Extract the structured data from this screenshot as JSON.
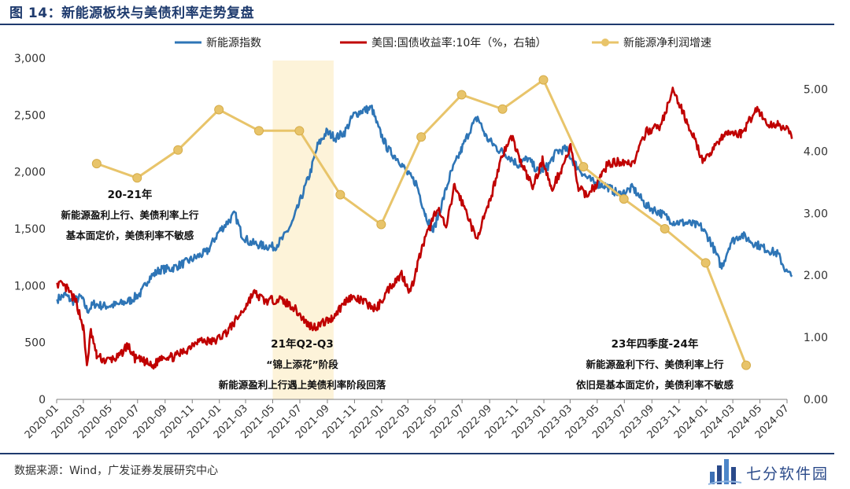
{
  "figure": {
    "title": "图 14：新能源板块与美债利率走势复盘",
    "source": "数据来源：Wind，广发证券发展研究中心",
    "watermark": "七分软件园"
  },
  "chart_data": {
    "type": "line",
    "legend": [
      {
        "name": "新能源指数",
        "color": "#2e75b6",
        "marker": "line"
      },
      {
        "name": "美国:国债收益率:10年（%，右轴）",
        "color": "#c00000",
        "marker": "line"
      },
      {
        "name": "新能源净利润增速",
        "color": "#e8c46a",
        "marker": "line-dot"
      }
    ],
    "legend_placement": "top",
    "grid": false,
    "x_ticks": [
      "2020-01",
      "2020-03",
      "2020-05",
      "2020-07",
      "2020-09",
      "2020-11",
      "2021-01",
      "2021-03",
      "2021-05",
      "2021-07",
      "2021-09",
      "2021-11",
      "2022-01",
      "2022-03",
      "2022-05",
      "2022-07",
      "2022-09",
      "2022-11",
      "2023-01",
      "2023-03",
      "2023-05",
      "2023-07",
      "2023-09",
      "2023-11",
      "2024-01",
      "2024-03",
      "2024-05",
      "2024-07"
    ],
    "y_left": {
      "ticks": [
        "0",
        "500",
        "1,000",
        "1,500",
        "2,000",
        "2,500",
        "3,000"
      ],
      "range": [
        0,
        3000
      ]
    },
    "y_right": {
      "ticks": [
        "0.00",
        "1.00",
        "2.00",
        "3.00",
        "4.00",
        "5.00"
      ],
      "range": [
        0,
        5.5
      ]
    },
    "series": [
      {
        "name": "新能源指数",
        "axis": "left",
        "color": "#2e75b6",
        "noise": 38,
        "seed": 7,
        "points": [
          [
            "2020-01-02",
            880
          ],
          [
            "2020-01-20",
            920
          ],
          [
            "2020-02-05",
            860
          ],
          [
            "2020-02-25",
            900
          ],
          [
            "2020-03-10",
            780
          ],
          [
            "2020-03-25",
            840
          ],
          [
            "2020-04-15",
            820
          ],
          [
            "2020-05-15",
            830
          ],
          [
            "2020-06-15",
            870
          ],
          [
            "2020-07-10",
            940
          ],
          [
            "2020-07-25",
            1060
          ],
          [
            "2020-08-20",
            1140
          ],
          [
            "2020-09-15",
            1150
          ],
          [
            "2020-10-15",
            1200
          ],
          [
            "2020-11-10",
            1250
          ],
          [
            "2020-12-05",
            1300
          ],
          [
            "2020-12-30",
            1470
          ],
          [
            "2021-01-20",
            1560
          ],
          [
            "2021-02-05",
            1630
          ],
          [
            "2021-02-20",
            1450
          ],
          [
            "2021-03-10",
            1380
          ],
          [
            "2021-04-10",
            1350
          ],
          [
            "2021-05-05",
            1340
          ],
          [
            "2021-05-25",
            1420
          ],
          [
            "2021-06-15",
            1560
          ],
          [
            "2021-07-05",
            1780
          ],
          [
            "2021-07-25",
            2000
          ],
          [
            "2021-08-10",
            2230
          ],
          [
            "2021-08-30",
            2350
          ],
          [
            "2021-09-20",
            2300
          ],
          [
            "2021-10-10",
            2350
          ],
          [
            "2021-10-30",
            2500
          ],
          [
            "2021-11-20",
            2540
          ],
          [
            "2021-12-10",
            2560
          ],
          [
            "2021-12-25",
            2380
          ],
          [
            "2022-01-15",
            2200
          ],
          [
            "2022-02-10",
            2100
          ],
          [
            "2022-03-01",
            1980
          ],
          [
            "2022-03-20",
            1900
          ],
          [
            "2022-04-10",
            1620
          ],
          [
            "2022-04-27",
            1480
          ],
          [
            "2022-05-15",
            1700
          ],
          [
            "2022-06-05",
            1980
          ],
          [
            "2022-06-30",
            2200
          ],
          [
            "2022-07-20",
            2380
          ],
          [
            "2022-08-05",
            2480
          ],
          [
            "2022-08-25",
            2300
          ],
          [
            "2022-09-20",
            2200
          ],
          [
            "2022-10-10",
            2150
          ],
          [
            "2022-11-05",
            2060
          ],
          [
            "2022-11-25",
            2120
          ],
          [
            "2022-12-20",
            2000
          ],
          [
            "2023-01-10",
            2050
          ],
          [
            "2023-01-30",
            2180
          ],
          [
            "2023-02-20",
            2200
          ],
          [
            "2023-03-10",
            2080
          ],
          [
            "2023-04-05",
            1960
          ],
          [
            "2023-04-25",
            1900
          ],
          [
            "2023-05-20",
            1880
          ],
          [
            "2023-06-20",
            1800
          ],
          [
            "2023-07-20",
            1860
          ],
          [
            "2023-08-20",
            1700
          ],
          [
            "2023-09-20",
            1640
          ],
          [
            "2023-10-20",
            1560
          ],
          [
            "2023-11-20",
            1550
          ],
          [
            "2023-12-20",
            1520
          ],
          [
            "2024-01-10",
            1400
          ],
          [
            "2024-02-05",
            1160
          ],
          [
            "2024-02-25",
            1380
          ],
          [
            "2024-03-20",
            1450
          ],
          [
            "2024-04-15",
            1380
          ],
          [
            "2024-05-10",
            1330
          ],
          [
            "2024-06-10",
            1280
          ],
          [
            "2024-06-30",
            1120
          ],
          [
            "2024-07-12",
            1080
          ]
        ]
      },
      {
        "name": "美国:国债收益率:10年（%，右轴）",
        "axis": "right",
        "color": "#c00000",
        "noise": 0.07,
        "seed": 13,
        "points": [
          [
            "2020-01-02",
            1.88
          ],
          [
            "2020-01-25",
            1.78
          ],
          [
            "2020-02-15",
            1.55
          ],
          [
            "2020-03-01",
            1.15
          ],
          [
            "2020-03-09",
            0.54
          ],
          [
            "2020-03-18",
            1.1
          ],
          [
            "2020-03-31",
            0.7
          ],
          [
            "2020-04-20",
            0.62
          ],
          [
            "2020-05-20",
            0.68
          ],
          [
            "2020-06-08",
            0.88
          ],
          [
            "2020-06-25",
            0.66
          ],
          [
            "2020-07-20",
            0.6
          ],
          [
            "2020-08-04",
            0.52
          ],
          [
            "2020-08-25",
            0.7
          ],
          [
            "2020-09-20",
            0.68
          ],
          [
            "2020-10-20",
            0.8
          ],
          [
            "2020-11-10",
            0.95
          ],
          [
            "2020-12-20",
            0.93
          ],
          [
            "2021-01-20",
            1.1
          ],
          [
            "2021-02-25",
            1.45
          ],
          [
            "2021-03-19",
            1.72
          ],
          [
            "2021-04-15",
            1.58
          ],
          [
            "2021-05-15",
            1.62
          ],
          [
            "2021-06-15",
            1.5
          ],
          [
            "2021-07-20",
            1.2
          ],
          [
            "2021-08-04",
            1.17
          ],
          [
            "2021-09-10",
            1.3
          ],
          [
            "2021-10-20",
            1.65
          ],
          [
            "2021-11-20",
            1.58
          ],
          [
            "2021-12-20",
            1.45
          ],
          [
            "2022-01-20",
            1.82
          ],
          [
            "2022-02-15",
            2.02
          ],
          [
            "2022-03-07",
            1.73
          ],
          [
            "2022-03-31",
            2.4
          ],
          [
            "2022-05-06",
            3.1
          ],
          [
            "2022-05-26",
            2.75
          ],
          [
            "2022-06-14",
            3.45
          ],
          [
            "2022-07-15",
            2.95
          ],
          [
            "2022-08-01",
            2.58
          ],
          [
            "2022-08-30",
            3.12
          ],
          [
            "2022-09-27",
            3.9
          ],
          [
            "2022-10-21",
            4.24
          ],
          [
            "2022-11-10",
            3.82
          ],
          [
            "2022-12-07",
            3.42
          ],
          [
            "2022-12-30",
            3.88
          ],
          [
            "2023-01-18",
            3.37
          ],
          [
            "2023-02-10",
            3.72
          ],
          [
            "2023-03-02",
            4.07
          ],
          [
            "2023-03-20",
            3.4
          ],
          [
            "2023-04-06",
            3.3
          ],
          [
            "2023-04-28",
            3.45
          ],
          [
            "2023-05-25",
            3.8
          ],
          [
            "2023-06-30",
            3.84
          ],
          [
            "2023-07-20",
            3.8
          ],
          [
            "2023-08-21",
            4.33
          ],
          [
            "2023-09-20",
            4.4
          ],
          [
            "2023-10-19",
            4.98
          ],
          [
            "2023-11-10",
            4.62
          ],
          [
            "2023-11-30",
            4.3
          ],
          [
            "2023-12-27",
            3.8
          ],
          [
            "2024-01-20",
            4.1
          ],
          [
            "2024-02-20",
            4.3
          ],
          [
            "2024-03-20",
            4.28
          ],
          [
            "2024-04-25",
            4.7
          ],
          [
            "2024-05-20",
            4.4
          ],
          [
            "2024-06-10",
            4.45
          ],
          [
            "2024-06-30",
            4.35
          ],
          [
            "2024-07-12",
            4.2
          ]
        ]
      },
      {
        "name": "新能源净利润增速",
        "axis": "right",
        "color": "#e8c46a",
        "markers": true,
        "points": [
          [
            "2020-03-31",
            3.8
          ],
          [
            "2020-06-30",
            3.57
          ],
          [
            "2020-09-30",
            4.02
          ],
          [
            "2020-12-31",
            4.67
          ],
          [
            "2021-03-31",
            4.33
          ],
          [
            "2021-06-30",
            4.33
          ],
          [
            "2021-09-30",
            3.3
          ],
          [
            "2021-12-31",
            2.82
          ],
          [
            "2022-03-31",
            4.23
          ],
          [
            "2022-06-30",
            4.91
          ],
          [
            "2022-09-30",
            4.68
          ],
          [
            "2022-12-31",
            5.15
          ],
          [
            "2023-03-31",
            3.75
          ],
          [
            "2023-06-30",
            3.23
          ],
          [
            "2023-09-30",
            2.75
          ],
          [
            "2023-12-31",
            2.2
          ],
          [
            "2024-03-31",
            0.55
          ]
        ]
      }
    ],
    "highlight": {
      "from": "2021-05-01",
      "to": "2021-09-15",
      "color": "#fdf3d9"
    },
    "annotations": [
      {
        "id": "a1",
        "lines": [
          "20-21年",
          "新能源盈利上行、美债利率上行",
          "基本面定价，美债利率不敏感"
        ]
      },
      {
        "id": "a2",
        "lines": [
          "21年Q2-Q3",
          "“锦上添花”阶段",
          "新能源盈利上行遇上美债利率阶段回落"
        ]
      },
      {
        "id": "a3",
        "lines": [
          "23年四季度-24年",
          "新能源盈利下行、美债利率上行",
          "依旧是基本面定价，美债利率不敏感"
        ]
      }
    ]
  }
}
